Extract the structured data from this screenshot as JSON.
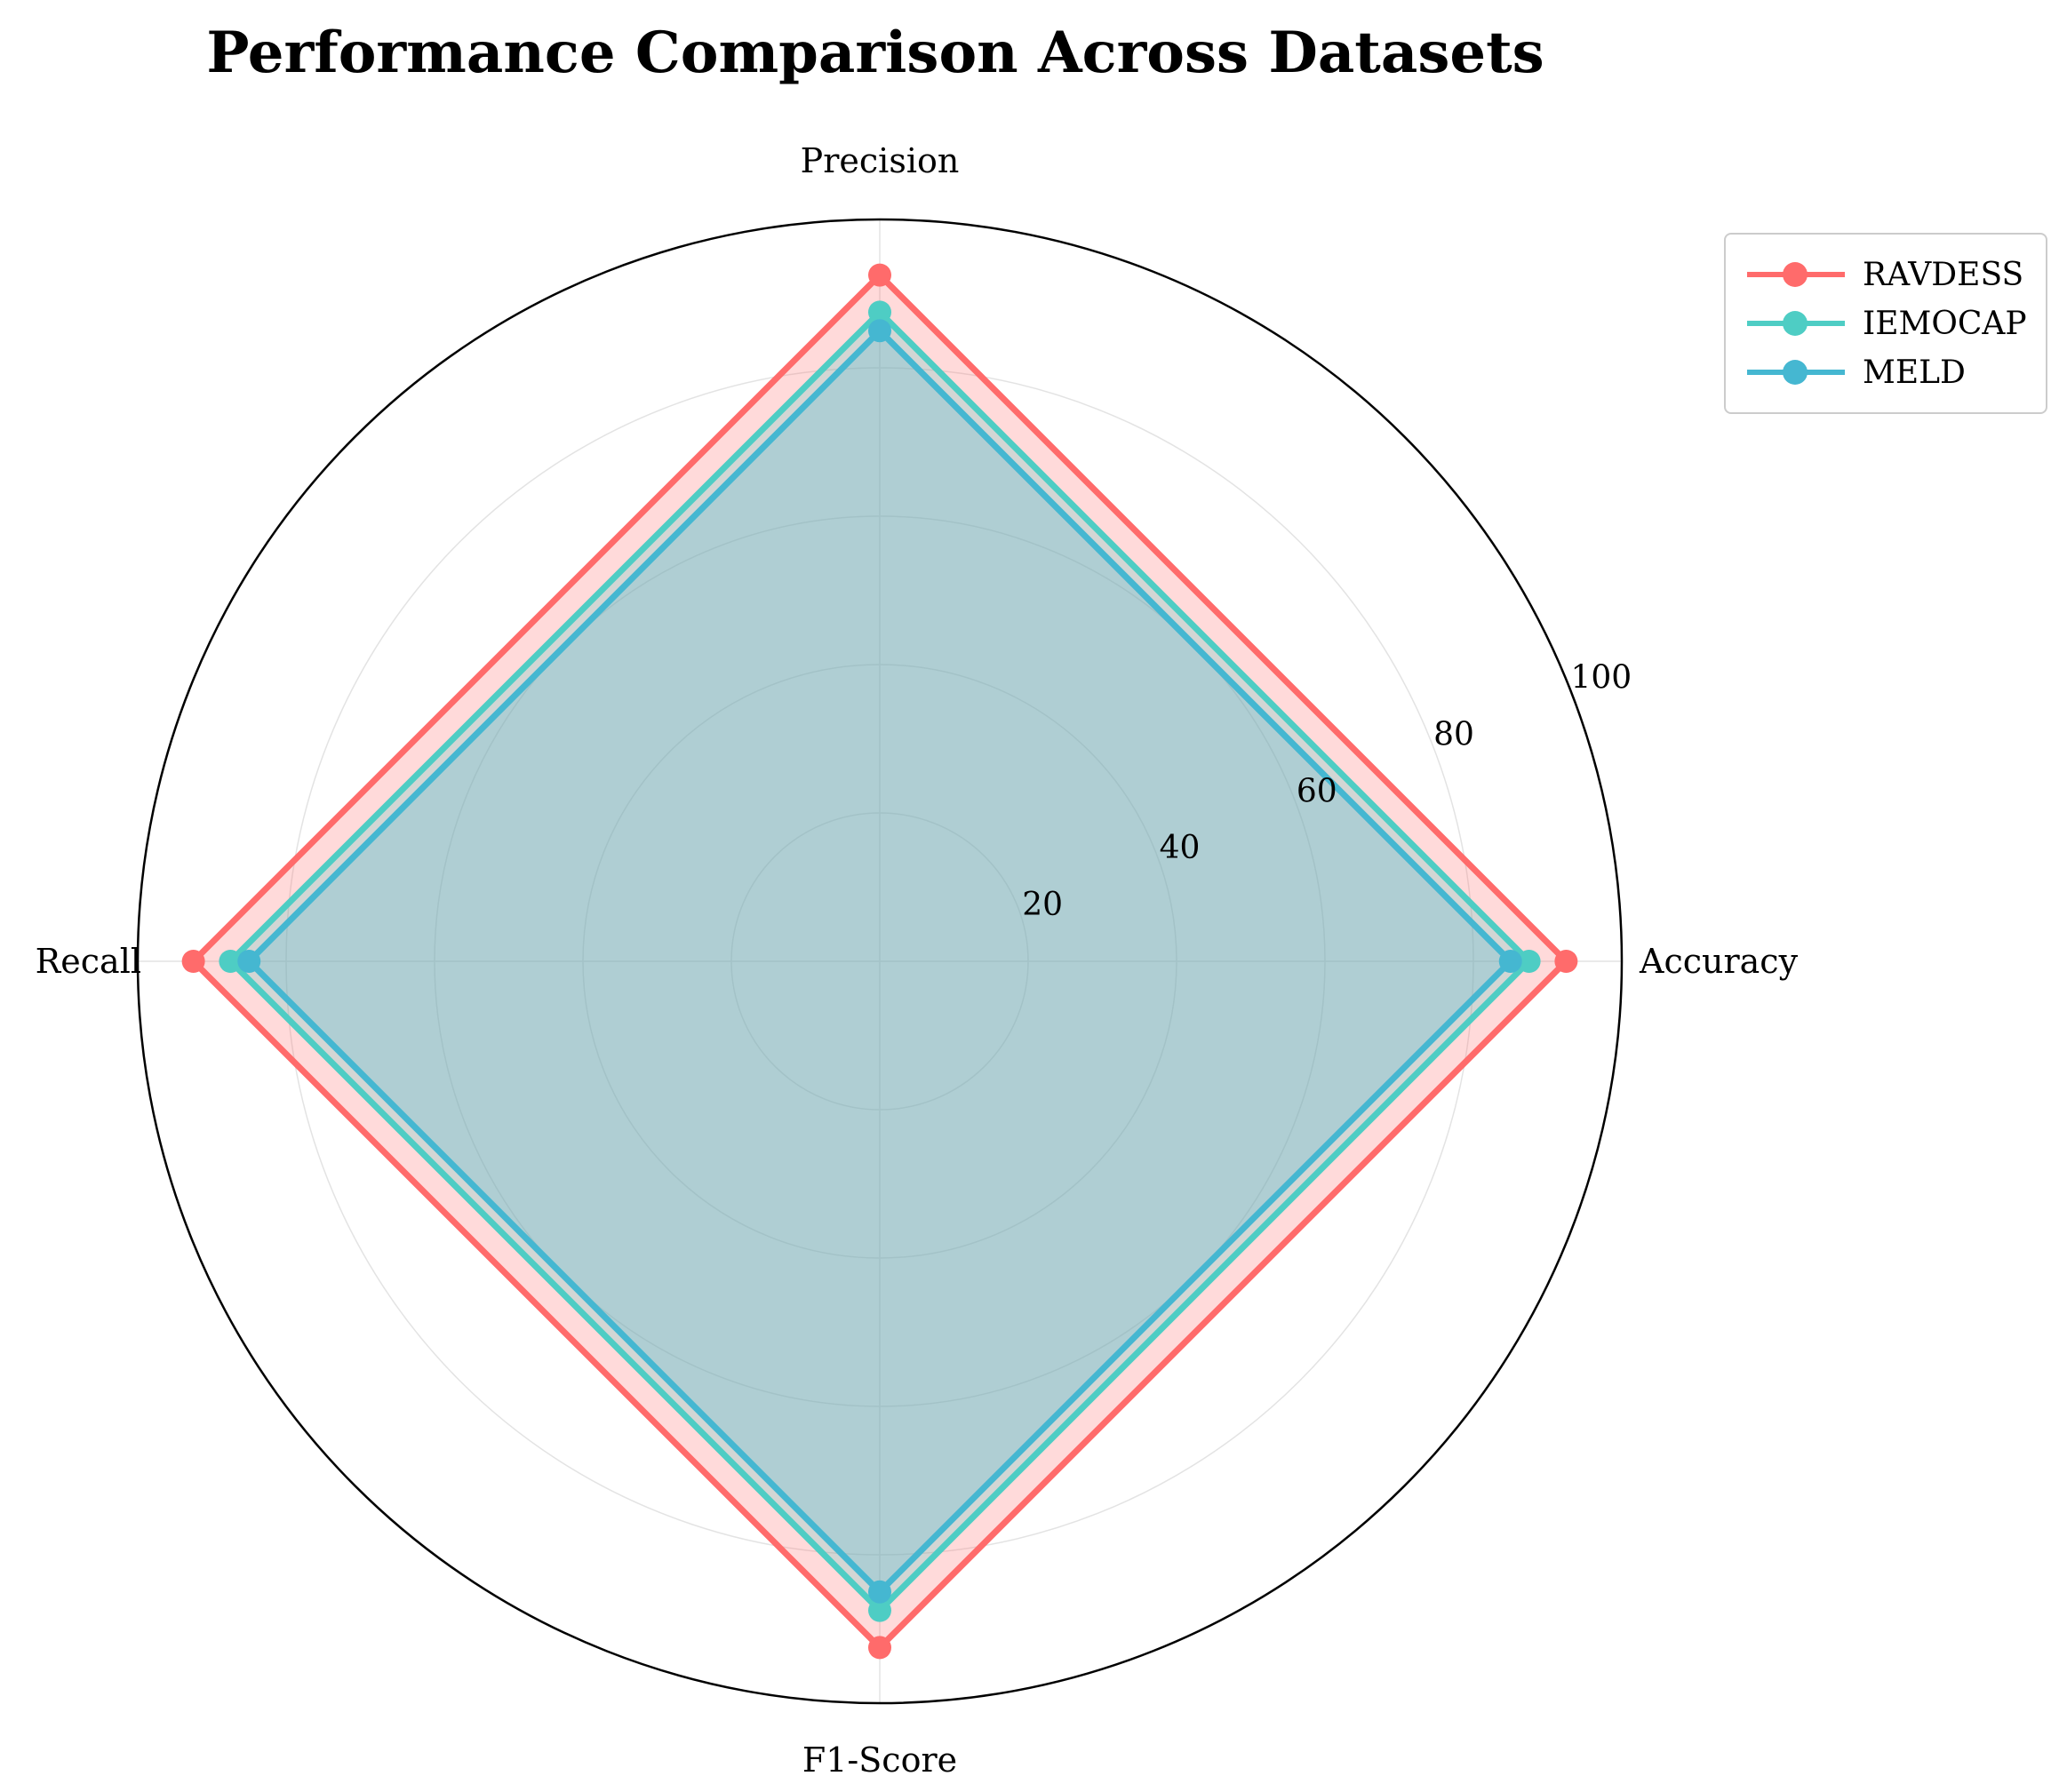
{
  "chart_data": {
    "type": "radar",
    "title": "Performance Comparison Across Datasets",
    "axes": [
      "Accuracy",
      "Precision",
      "Recall",
      "F1-Score"
    ],
    "rlim": [
      0,
      100
    ],
    "rticks": [
      20,
      40,
      60,
      80,
      100
    ],
    "grid": true,
    "legend_position": "top-right",
    "series": [
      {
        "name": "RAVDESS",
        "values": [
          92.5,
          92.5,
          92.5,
          92.5
        ],
        "color": "#FF6B6B"
      },
      {
        "name": "IEMOCAP",
        "values": [
          87.5,
          87.5,
          87.5,
          87.5
        ],
        "color": "#4ECDC4"
      },
      {
        "name": "MELD",
        "values": [
          85.0,
          85.0,
          85.0,
          85.0
        ],
        "color": "#45B7D1"
      }
    ]
  }
}
